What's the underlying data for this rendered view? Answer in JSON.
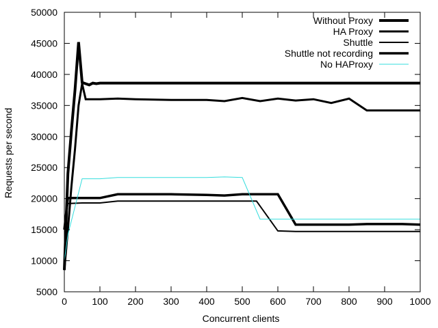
{
  "chart_data": {
    "type": "line",
    "title": "",
    "xlabel": "Concurrent clients",
    "ylabel": "Requests per second",
    "xlim": [
      0,
      1000
    ],
    "ylim": [
      5000,
      50000
    ],
    "xticks": [
      0,
      100,
      200,
      300,
      400,
      500,
      600,
      700,
      800,
      900,
      1000
    ],
    "yticks": [
      5000,
      10000,
      15000,
      20000,
      25000,
      30000,
      35000,
      40000,
      45000,
      50000
    ],
    "grid": false,
    "legend_position": "top-right",
    "series": [
      {
        "name": "Without Proxy",
        "color": "#000000",
        "width": 4,
        "points": [
          [
            0,
            8500
          ],
          [
            10,
            24000
          ],
          [
            20,
            31000
          ],
          [
            30,
            37500
          ],
          [
            40,
            45200
          ],
          [
            50,
            38700
          ],
          [
            60,
            38500
          ],
          [
            70,
            38300
          ],
          [
            80,
            38600
          ],
          [
            90,
            38500
          ],
          [
            100,
            38600
          ],
          [
            150,
            38600
          ],
          [
            200,
            38600
          ],
          [
            300,
            38600
          ],
          [
            400,
            38600
          ],
          [
            500,
            38600
          ],
          [
            600,
            38600
          ],
          [
            700,
            38600
          ],
          [
            800,
            38600
          ],
          [
            900,
            38600
          ],
          [
            1000,
            38600
          ]
        ]
      },
      {
        "name": "HA Proxy",
        "color": "#000000",
        "width": 3,
        "points": [
          [
            0,
            8500
          ],
          [
            10,
            15000
          ],
          [
            20,
            22000
          ],
          [
            30,
            28000
          ],
          [
            40,
            35000
          ],
          [
            50,
            38500
          ],
          [
            60,
            36000
          ],
          [
            100,
            36000
          ],
          [
            150,
            36100
          ],
          [
            200,
            36000
          ],
          [
            300,
            35900
          ],
          [
            400,
            35900
          ],
          [
            450,
            35700
          ],
          [
            500,
            36200
          ],
          [
            550,
            35700
          ],
          [
            600,
            36100
          ],
          [
            650,
            35800
          ],
          [
            700,
            36000
          ],
          [
            750,
            35400
          ],
          [
            800,
            36100
          ],
          [
            850,
            34200
          ],
          [
            900,
            34200
          ],
          [
            1000,
            34200
          ]
        ]
      },
      {
        "name": "Shuttle",
        "color": "#000000",
        "width": 2,
        "points": [
          [
            0,
            15000
          ],
          [
            10,
            19200
          ],
          [
            50,
            19300
          ],
          [
            100,
            19300
          ],
          [
            150,
            19600
          ],
          [
            200,
            19600
          ],
          [
            300,
            19600
          ],
          [
            400,
            19600
          ],
          [
            500,
            19600
          ],
          [
            540,
            19600
          ],
          [
            600,
            14800
          ],
          [
            650,
            14700
          ],
          [
            700,
            14700
          ],
          [
            800,
            14700
          ],
          [
            900,
            14700
          ],
          [
            1000,
            14700
          ]
        ]
      },
      {
        "name": "Shuttle not recording",
        "color": "#000000",
        "width": 3.5,
        "points": [
          [
            0,
            15000
          ],
          [
            10,
            20100
          ],
          [
            50,
            20100
          ],
          [
            100,
            20100
          ],
          [
            150,
            20700
          ],
          [
            200,
            20700
          ],
          [
            300,
            20700
          ],
          [
            400,
            20600
          ],
          [
            450,
            20500
          ],
          [
            500,
            20700
          ],
          [
            600,
            20700
          ],
          [
            650,
            15800
          ],
          [
            700,
            15800
          ],
          [
            800,
            15800
          ],
          [
            850,
            15900
          ],
          [
            900,
            15900
          ],
          [
            950,
            15900
          ],
          [
            1000,
            15800
          ]
        ]
      },
      {
        "name": "No HAProxy",
        "color": "#33dddd",
        "width": 1,
        "points": [
          [
            0,
            10000
          ],
          [
            10,
            14200
          ],
          [
            50,
            23200
          ],
          [
            100,
            23200
          ],
          [
            150,
            23400
          ],
          [
            200,
            23400
          ],
          [
            300,
            23400
          ],
          [
            400,
            23400
          ],
          [
            450,
            23500
          ],
          [
            500,
            23400
          ],
          [
            550,
            16700
          ],
          [
            600,
            16700
          ],
          [
            700,
            16700
          ],
          [
            800,
            16700
          ],
          [
            900,
            16700
          ],
          [
            1000,
            16700
          ]
        ]
      }
    ]
  }
}
